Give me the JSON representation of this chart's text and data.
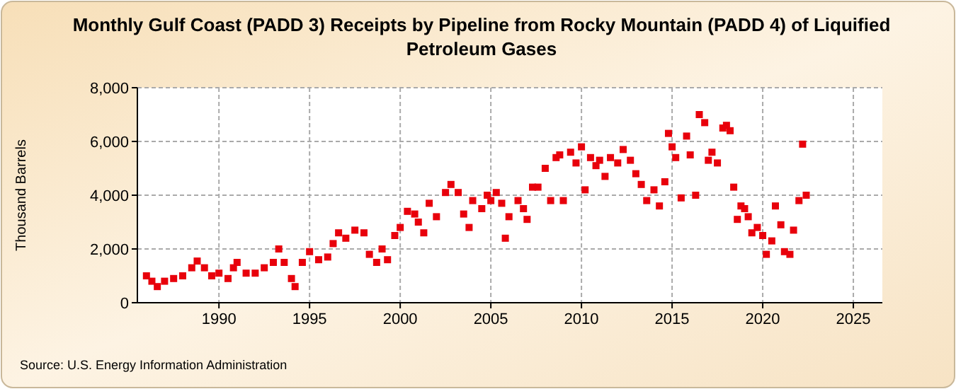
{
  "chart_data": {
    "type": "scatter",
    "title": "Monthly Gulf Coast (PADD 3) Receipts by Pipeline from Rocky Mountain (PADD 4) of Liquified Petroleum Gases",
    "ylabel": "Thousand Barrels",
    "annotations": [
      "Source: U.S. Energy Information Administration"
    ],
    "x": [
      1986.0,
      1986.3,
      1986.6,
      1987.0,
      1987.5,
      1988.0,
      1988.5,
      1988.8,
      1989.2,
      1989.6,
      1990.0,
      1990.5,
      1990.8,
      1991.0,
      1991.5,
      1992.0,
      1992.5,
      1993.0,
      1993.3,
      1993.6,
      1994.0,
      1994.2,
      1994.6,
      1995.0,
      1995.5,
      1996.0,
      1996.3,
      1996.6,
      1997.0,
      1997.5,
      1998.0,
      1998.3,
      1998.7,
      1999.0,
      1999.3,
      1999.7,
      2000.0,
      2000.4,
      2000.8,
      2001.0,
      2001.3,
      2001.6,
      2002.0,
      2002.5,
      2002.8,
      2003.2,
      2003.5,
      2003.8,
      2004.0,
      2004.5,
      2004.8,
      2005.0,
      2005.3,
      2005.6,
      2005.8,
      2006.0,
      2006.5,
      2006.8,
      2007.0,
      2007.3,
      2007.6,
      2008.0,
      2008.3,
      2008.6,
      2008.8,
      2009.0,
      2009.4,
      2009.7,
      2010.0,
      2010.2,
      2010.5,
      2010.8,
      2011.0,
      2011.3,
      2011.6,
      2012.0,
      2012.3,
      2012.7,
      2013.0,
      2013.3,
      2013.6,
      2014.0,
      2014.3,
      2014.6,
      2014.8,
      2015.0,
      2015.2,
      2015.5,
      2015.8,
      2016.0,
      2016.3,
      2016.5,
      2016.8,
      2017.0,
      2017.2,
      2017.5,
      2017.8,
      2018.0,
      2018.2,
      2018.4,
      2018.6,
      2018.8,
      2019.0,
      2019.2,
      2019.4,
      2019.7,
      2020.0,
      2020.2,
      2020.5,
      2020.7,
      2021.0,
      2021.2,
      2021.5,
      2021.7,
      2022.0,
      2022.2,
      2022.4
    ],
    "series": [
      {
        "color": "#e8000b",
        "values": [
          1000,
          800,
          600,
          800,
          900,
          1000,
          1300,
          1550,
          1300,
          1000,
          1100,
          900,
          1300,
          1500,
          1100,
          1100,
          1300,
          1500,
          2000,
          1500,
          900,
          600,
          1500,
          1900,
          1600,
          1700,
          2200,
          2600,
          2400,
          2700,
          2600,
          1800,
          1500,
          2000,
          1600,
          2500,
          2800,
          3400,
          3300,
          3000,
          2600,
          3700,
          3200,
          4100,
          4400,
          4100,
          3300,
          2800,
          3800,
          3500,
          4000,
          3800,
          4100,
          3700,
          2400,
          3200,
          3800,
          3500,
          3100,
          4300,
          4300,
          5000,
          3800,
          5400,
          5500,
          3800,
          5600,
          5200,
          5800,
          4200,
          5400,
          5100,
          5300,
          4700,
          5400,
          5200,
          5700,
          5300,
          4800,
          4400,
          3800,
          4200,
          3600,
          4500,
          6300,
          5800,
          5400,
          3900,
          6200,
          5500,
          4000,
          7000,
          6700,
          5300,
          5600,
          5200,
          6500,
          6600,
          6400,
          4300,
          3100,
          3600,
          3500,
          3200,
          2600,
          2800,
          2500,
          1800,
          2300,
          3600,
          2900,
          1900,
          1800,
          2700,
          3800,
          5900,
          4000
        ]
      }
    ],
    "xlim": [
      1985.5,
      2026.6
    ],
    "xticks": [
      1990,
      1995,
      2000,
      2005,
      2010,
      2015,
      2020,
      2025
    ],
    "ylim": [
      0,
      8000
    ],
    "yticks": [
      {
        "value": 0,
        "label": "0"
      },
      {
        "value": 2000,
        "label": "2,000"
      },
      {
        "value": 4000,
        "label": "4,000"
      },
      {
        "value": 6000,
        "label": "6,000"
      },
      {
        "value": 8000,
        "label": "8,000"
      }
    ],
    "grid": true,
    "marker": "square"
  }
}
